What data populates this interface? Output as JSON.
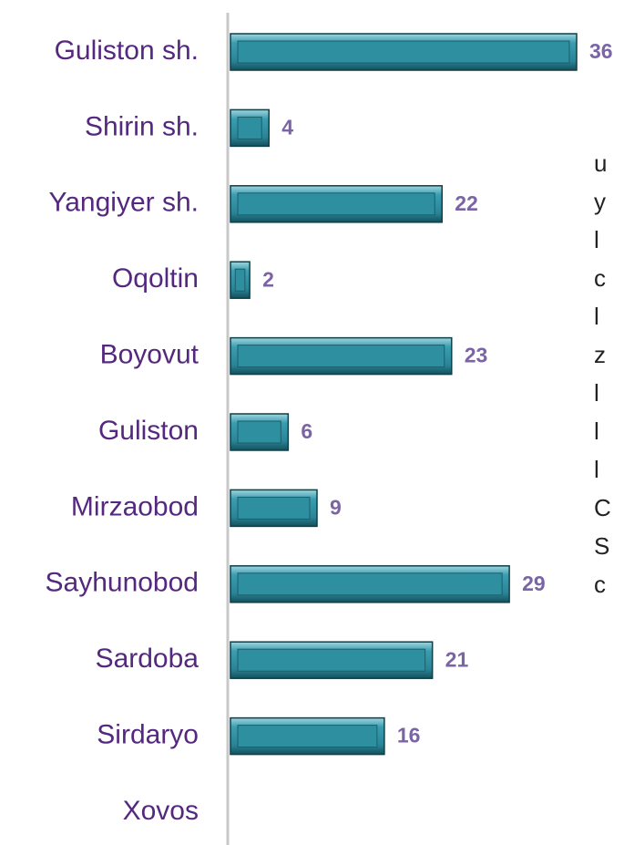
{
  "chart_data": {
    "type": "bar",
    "orientation": "horizontal",
    "categories": [
      "Guliston sh.",
      "Shirin sh.",
      "Yangiyer sh.",
      "Oqoltin",
      "Boyovut",
      "Guliston",
      "Mirzaobod",
      "Sayhunobod",
      "Sardoba",
      "Sirdaryo",
      "Xovos"
    ],
    "values": [
      36,
      4,
      22,
      2,
      23,
      6,
      9,
      29,
      21,
      16,
      null
    ],
    "color": "#2e8fa0"
  },
  "side_text": [
    "u",
    "y",
    "l",
    "c",
    "l",
    "z",
    "l",
    "l",
    "l",
    "C",
    "S",
    "c"
  ]
}
